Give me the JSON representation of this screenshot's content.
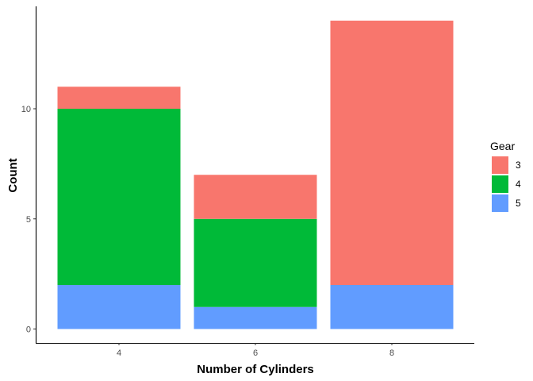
{
  "chart_data": {
    "type": "bar",
    "stacked": true,
    "categories": [
      "4",
      "6",
      "8"
    ],
    "series": [
      {
        "name": "5",
        "values": [
          2,
          1,
          2
        ],
        "color": "#619CFF"
      },
      {
        "name": "4",
        "values": [
          8,
          4,
          0
        ],
        "color": "#00BA38"
      },
      {
        "name": "3",
        "values": [
          1,
          2,
          12
        ],
        "color": "#F8766D"
      }
    ],
    "xlabel": "Number of Cylinders",
    "ylabel": "Count",
    "yticks": [
      0,
      5,
      10
    ],
    "ylim": [
      0,
      14
    ],
    "grid": false,
    "legend": {
      "title": "Gear",
      "placement": "right",
      "entries": [
        {
          "label": "3",
          "color": "#F8766D"
        },
        {
          "label": "4",
          "color": "#00BA38"
        },
        {
          "label": "5",
          "color": "#619CFF"
        }
      ]
    }
  }
}
